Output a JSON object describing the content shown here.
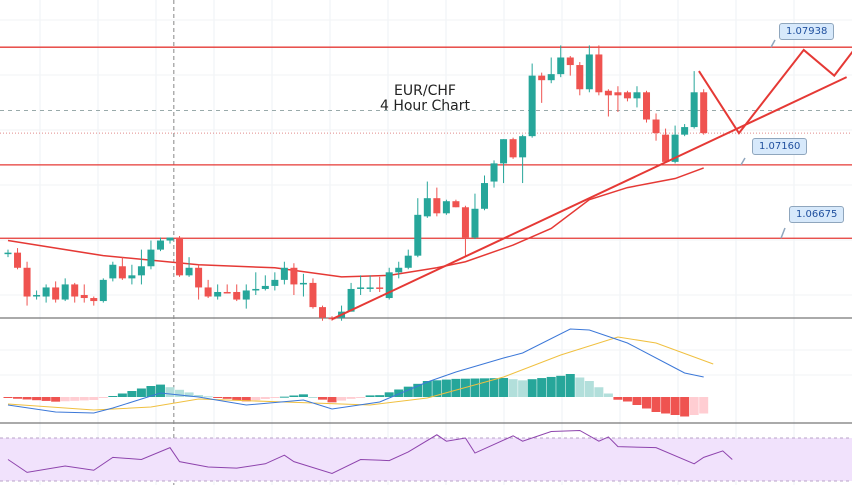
{
  "chart_data": {
    "type": "candlestick",
    "title": "EUR/CHF",
    "subtitle": "4 Hour Chart",
    "ylim": [
      1.061,
      1.0825
    ],
    "colors": {
      "up": "#26a69a",
      "down": "#ef5350",
      "line": "#e53935",
      "macd": "#3c78d8",
      "signal": "#f0c040",
      "rsi": "#8e44ad",
      "rsi_band": "#f1e2fc"
    },
    "candles": [
      [
        1.0658,
        1.066,
        1.0655,
        1.0658
      ],
      [
        1.0658,
        1.0661,
        1.0647,
        1.0648
      ],
      [
        1.0648,
        1.0652,
        1.0623,
        1.0629
      ],
      [
        1.063,
        1.0633,
        1.0627,
        1.063
      ],
      [
        1.0629,
        1.0637,
        1.0625,
        1.0635
      ],
      [
        1.0635,
        1.0639,
        1.0625,
        1.0627
      ],
      [
        1.0627,
        1.0641,
        1.0626,
        1.0637
      ],
      [
        1.0637,
        1.0638,
        1.0625,
        1.0629
      ],
      [
        1.063,
        1.0637,
        1.0625,
        1.0628
      ],
      [
        1.0628,
        1.0629,
        1.0623,
        1.0626
      ],
      [
        1.0626,
        1.0641,
        1.0625,
        1.064
      ],
      [
        1.0641,
        1.0652,
        1.0639,
        1.065
      ],
      [
        1.0649,
        1.0655,
        1.064,
        1.0641
      ],
      [
        1.0641,
        1.065,
        1.0637,
        1.0643
      ],
      [
        1.0643,
        1.066,
        1.0637,
        1.0649
      ],
      [
        1.0649,
        1.0666,
        1.0647,
        1.066
      ],
      [
        1.066,
        1.0668,
        1.0659,
        1.0666
      ],
      [
        1.0666,
        1.0668,
        1.0664,
        1.0668
      ],
      [
        1.0668,
        1.0669,
        1.0642,
        1.0643
      ],
      [
        1.0643,
        1.0655,
        1.0642,
        1.0648
      ],
      [
        1.0648,
        1.065,
        1.0627,
        1.0635
      ],
      [
        1.0635,
        1.064,
        1.0628,
        1.0629
      ],
      [
        1.0629,
        1.0637,
        1.0627,
        1.0632
      ],
      [
        1.0632,
        1.0637,
        1.0631,
        1.0631
      ],
      [
        1.0632,
        1.0637,
        1.0626,
        1.0627
      ],
      [
        1.0627,
        1.0637,
        1.0621,
        1.0633
      ],
      [
        1.0633,
        1.0645,
        1.063,
        1.0634
      ],
      [
        1.0634,
        1.0643,
        1.0633,
        1.0636
      ],
      [
        1.0636,
        1.0645,
        1.0633,
        1.064
      ],
      [
        1.064,
        1.0652,
        1.0637,
        1.0648
      ],
      [
        1.0648,
        1.0651,
        1.063,
        1.0637
      ],
      [
        1.0637,
        1.0644,
        1.0629,
        1.0638
      ],
      [
        1.0638,
        1.0641,
        1.0621,
        1.0622
      ],
      [
        1.0622,
        1.0623,
        1.0613,
        1.0615
      ],
      [
        1.0615,
        1.0616,
        1.0613,
        1.0614
      ],
      [
        1.0615,
        1.0623,
        1.0613,
        1.0619
      ],
      [
        1.0619,
        1.0638,
        1.0619,
        1.0634
      ],
      [
        1.0634,
        1.0643,
        1.063,
        1.0635
      ],
      [
        1.0635,
        1.0643,
        1.0632,
        1.0635
      ],
      [
        1.0635,
        1.0642,
        1.0632,
        1.0634
      ],
      [
        1.0628,
        1.0648,
        1.0627,
        1.0645
      ],
      [
        1.0645,
        1.0652,
        1.0641,
        1.0648
      ],
      [
        1.0648,
        1.066,
        1.0647,
        1.0656
      ],
      [
        1.0656,
        1.0694,
        1.0655,
        1.0683
      ],
      [
        1.0682,
        1.0705,
        1.0681,
        1.0694
      ],
      [
        1.0694,
        1.0701,
        1.0682,
        1.0684
      ],
      [
        1.0684,
        1.0693,
        1.0683,
        1.0692
      ],
      [
        1.0692,
        1.0693,
        1.0688,
        1.0688
      ],
      [
        1.0688,
        1.0689,
        1.0655,
        1.0668
      ],
      [
        1.0668,
        1.0697,
        1.0667,
        1.0687
      ],
      [
        1.0687,
        1.0709,
        1.0686,
        1.0704
      ],
      [
        1.0705,
        1.0719,
        1.0701,
        1.0717
      ],
      [
        1.0717,
        1.0733,
        1.0704,
        1.0733
      ],
      [
        1.0733,
        1.0734,
        1.072,
        1.0721
      ],
      [
        1.0721,
        1.0736,
        1.0704,
        1.0735
      ],
      [
        1.0735,
        1.0783,
        1.0734,
        1.0775
      ],
      [
        1.0775,
        1.0777,
        1.0757,
        1.0772
      ],
      [
        1.0772,
        1.0787,
        1.077,
        1.0776
      ],
      [
        1.0776,
        1.0795,
        1.0774,
        1.0787
      ],
      [
        1.0787,
        1.0788,
        1.0775,
        1.0782
      ],
      [
        1.0782,
        1.0784,
        1.0762,
        1.0766
      ],
      [
        1.0766,
        1.0795,
        1.0764,
        1.0789
      ],
      [
        1.0789,
        1.0795,
        1.0762,
        1.0764
      ],
      [
        1.0765,
        1.0766,
        1.0748,
        1.0762
      ],
      [
        1.0764,
        1.0768,
        1.0751,
        1.0762
      ],
      [
        1.0764,
        1.0765,
        1.0758,
        1.076
      ],
      [
        1.076,
        1.0768,
        1.0754,
        1.0764
      ],
      [
        1.0764,
        1.0765,
        1.0744,
        1.0746
      ],
      [
        1.0746,
        1.075,
        1.0732,
        1.0737
      ],
      [
        1.0736,
        1.074,
        1.0718,
        1.0718
      ],
      [
        1.0718,
        1.0742,
        1.0717,
        1.0736
      ],
      [
        1.0736,
        1.0743,
        1.0735,
        1.0741
      ],
      [
        1.0741,
        1.0778,
        1.074,
        1.0764
      ],
      [
        1.0764,
        1.0766,
        1.0736,
        1.0737
      ]
    ],
    "moving_average": [
      [
        0,
        1.0666
      ],
      [
        10,
        1.0656
      ],
      [
        20,
        1.065
      ],
      [
        28,
        1.0648
      ],
      [
        35,
        1.0642
      ],
      [
        40,
        1.0643
      ],
      [
        45,
        1.0648
      ],
      [
        48,
        1.0652
      ],
      [
        53,
        1.0663
      ],
      [
        57,
        1.0674
      ],
      [
        61,
        1.0693
      ],
      [
        65,
        1.0701
      ],
      [
        70,
        1.0707
      ],
      [
        73,
        1.0714
      ]
    ],
    "levels": [
      {
        "price": 1.07938,
        "label": "1.07938"
      },
      {
        "price": 1.0716,
        "label": "1.07160"
      },
      {
        "price": 1.06675,
        "label": "1.06675"
      }
    ],
    "last_price": 1.0737,
    "dashed_price": 1.0752,
    "trendline": [
      [
        34,
        1.0614
      ],
      [
        88,
        1.0774
      ]
    ],
    "projection": [
      [
        72.5,
        1.0778
      ],
      [
        76.7,
        1.0737
      ],
      [
        83.5,
        1.0792
      ],
      [
        86.7,
        1.0775
      ],
      [
        89,
        1.0794
      ]
    ],
    "crosshair_index": 17.4,
    "macd": {
      "macd_line": [
        [
          0,
          -8
        ],
        [
          5,
          -15
        ],
        [
          9,
          -16
        ],
        [
          11,
          -11
        ],
        [
          16,
          4
        ],
        [
          20,
          0
        ],
        [
          25,
          -8
        ],
        [
          31,
          -3
        ],
        [
          34,
          -12
        ],
        [
          39,
          -5
        ],
        [
          44,
          15
        ],
        [
          47,
          25
        ],
        [
          52,
          39
        ],
        [
          54,
          44
        ],
        [
          59,
          68
        ],
        [
          61,
          67
        ],
        [
          65,
          54
        ],
        [
          70,
          29
        ],
        [
          71,
          24
        ],
        [
          73,
          20
        ]
      ],
      "signal_line": [
        [
          0,
          -7
        ],
        [
          9,
          -13
        ],
        [
          15,
          -10
        ],
        [
          20,
          -2
        ],
        [
          29,
          -5
        ],
        [
          38,
          -8
        ],
        [
          44,
          -1
        ],
        [
          52,
          20
        ],
        [
          58,
          42
        ],
        [
          64,
          60
        ],
        [
          68,
          54
        ],
        [
          74,
          33
        ]
      ]
    },
    "rsi": {
      "band": [
        30,
        70
      ],
      "values": [
        [
          0,
          50
        ],
        [
          2,
          38
        ],
        [
          6,
          44
        ],
        [
          9,
          40
        ],
        [
          11,
          52
        ],
        [
          14,
          50
        ],
        [
          17,
          61
        ],
        [
          18,
          48
        ],
        [
          21,
          43
        ],
        [
          24,
          42
        ],
        [
          27,
          46
        ],
        [
          29,
          54
        ],
        [
          30,
          48
        ],
        [
          34,
          37
        ],
        [
          37,
          50
        ],
        [
          40,
          49
        ],
        [
          42,
          57
        ],
        [
          45,
          73
        ],
        [
          46,
          67
        ],
        [
          48,
          70
        ],
        [
          49,
          56
        ],
        [
          53,
          72
        ],
        [
          54,
          67
        ],
        [
          57,
          76
        ],
        [
          60,
          77
        ],
        [
          62,
          67
        ],
        [
          63,
          71
        ],
        [
          64,
          62
        ],
        [
          68,
          61
        ],
        [
          72,
          46
        ],
        [
          73,
          52
        ],
        [
          75,
          58
        ],
        [
          76,
          50
        ]
      ]
    }
  }
}
